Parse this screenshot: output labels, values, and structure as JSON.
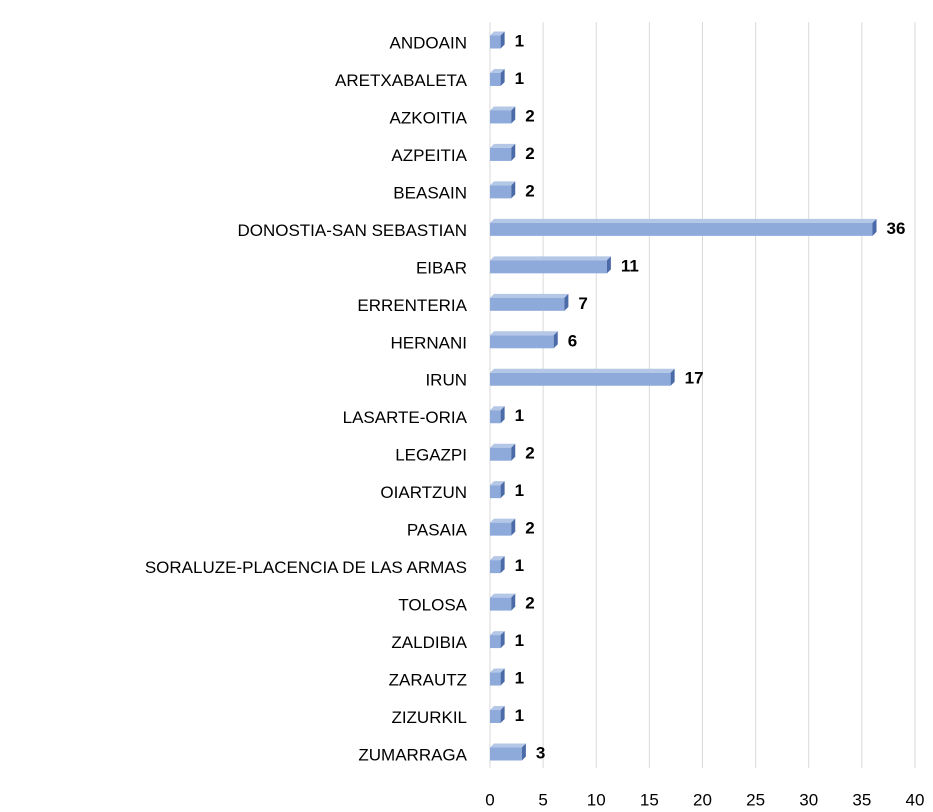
{
  "chart_data": {
    "type": "bar",
    "orientation": "horizontal",
    "categories": [
      "ANDOAIN",
      "ARETXABALETA",
      "AZKOITIA",
      "AZPEITIA",
      "BEASAIN",
      "DONOSTIA-SAN SEBASTIAN",
      "EIBAR",
      "ERRENTERIA",
      "HERNANI",
      "IRUN",
      "LASARTE-ORIA",
      "LEGAZPI",
      "OIARTZUN",
      "PASAIA",
      "SORALUZE-PLACENCIA DE LAS ARMAS",
      "TOLOSA",
      "ZALDIBIA",
      "ZARAUTZ",
      "ZIZURKIL",
      "ZUMARRAGA"
    ],
    "values": [
      1,
      1,
      2,
      2,
      2,
      36,
      11,
      7,
      6,
      17,
      1,
      2,
      1,
      2,
      1,
      2,
      1,
      1,
      1,
      3
    ],
    "color": "#8eaadb",
    "edge_color": "#4a6aa8",
    "xlim": [
      0,
      40
    ],
    "xticks": [
      0,
      5,
      10,
      15,
      20,
      25,
      30,
      35,
      40
    ],
    "grid": true
  }
}
